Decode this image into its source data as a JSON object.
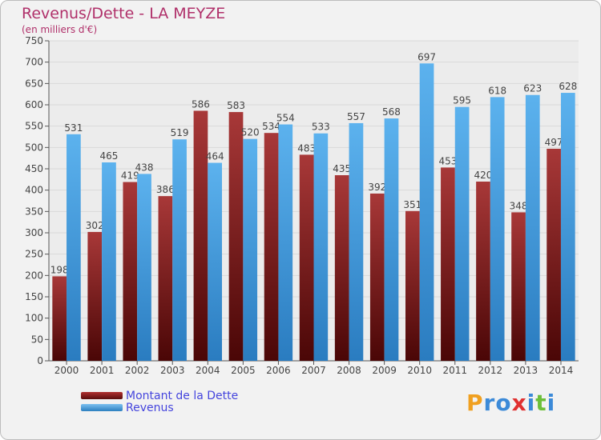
{
  "chart_data": {
    "type": "bar",
    "title": "Revenus/Dette - LA MEYZE",
    "subtitle": "(en milliers d'€)",
    "categories": [
      "2000",
      "2001",
      "2002",
      "2003",
      "2004",
      "2005",
      "2006",
      "2007",
      "2008",
      "2009",
      "2010",
      "2011",
      "2012",
      "2013",
      "2014"
    ],
    "series": [
      {
        "name": "Montant de la Dette",
        "values": [
          198,
          302,
          419,
          386,
          586,
          583,
          534,
          483,
          435,
          392,
          351,
          453,
          420,
          348,
          497
        ],
        "color": "#8b1a1a"
      },
      {
        "name": "Revenus",
        "values": [
          531,
          465,
          438,
          519,
          464,
          520,
          554,
          533,
          557,
          568,
          697,
          595,
          618,
          623,
          628
        ],
        "color": "#4aa3e6"
      }
    ],
    "ylim": [
      0,
      750
    ],
    "yticks": [
      0,
      50,
      100,
      150,
      200,
      250,
      300,
      350,
      400,
      450,
      500,
      550,
      600,
      650,
      700,
      750
    ],
    "grid": true,
    "legend_position": "bottom-left"
  },
  "logo": {
    "text": "Proxiti",
    "letters": [
      "P",
      "r",
      "o",
      "x",
      "i",
      "t",
      "i"
    ],
    "colors": [
      "#f0a020",
      "#3c8ad8",
      "#3c8ad8",
      "#e03030",
      "#3c8ad8",
      "#6cbf3a",
      "#3c8ad8"
    ]
  }
}
